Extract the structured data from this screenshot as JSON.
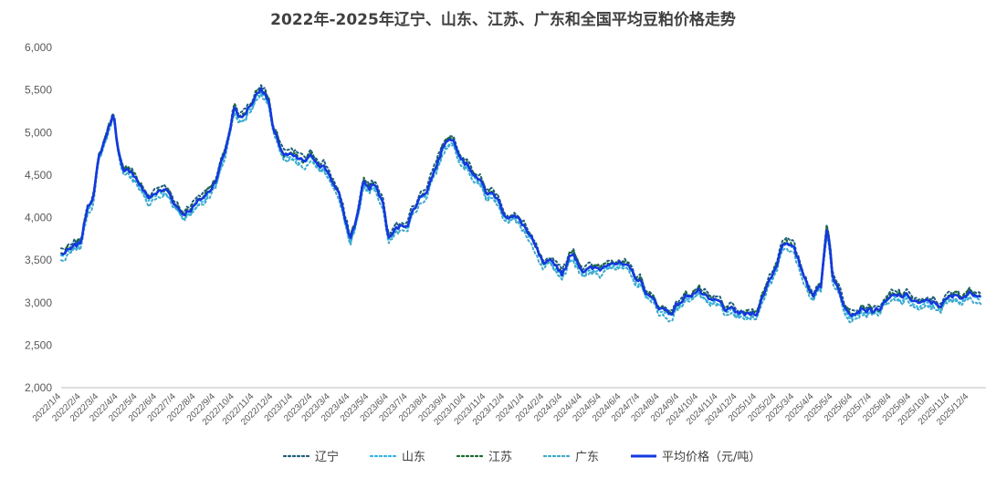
{
  "chart_data": {
    "type": "line",
    "title": "2022年-2025年辽宁、山东、江苏、广东和全国平均豆粕价格走势",
    "xlabel": "",
    "ylabel": "",
    "ylim": [
      2000,
      6000
    ],
    "yticks": [
      "2,000",
      "2,500",
      "3,000",
      "3,500",
      "4,000",
      "4,500",
      "5,000",
      "5,500",
      "6,000"
    ],
    "grid": false,
    "legend_position": "bottom",
    "x_tick_labels": [
      "2022/1/4",
      "2022/2/4",
      "2022/3/4",
      "2022/4/4",
      "2022/5/4",
      "2022/6/4",
      "2022/7/4",
      "2022/8/4",
      "2022/9/4",
      "2022/10/4",
      "2022/11/4",
      "2022/12/4",
      "2023/1/4",
      "2023/2/4",
      "2023/3/4",
      "2023/4/4",
      "2023/5/4",
      "2023/6/4",
      "2023/7/4",
      "2023/8/4",
      "2023/9/4",
      "2023/10/4",
      "2023/11/4",
      "2023/12/4",
      "2024/1/4",
      "2024/2/4",
      "2024/3/4",
      "2024/4/4",
      "2024/5/4",
      "2024/6/4",
      "2024/7/4",
      "2024/8/4",
      "2024/9/4",
      "2024/10/4",
      "2024/11/4",
      "2024/12/4",
      "2025/1/4",
      "2025/2/4",
      "2025/3/4",
      "2025/4/4",
      "2025/5/4",
      "2025/6/4",
      "2025/7/4",
      "2025/8/4",
      "2025/9/4",
      "2025/10/4",
      "2025/11/4",
      "2025/12/4"
    ],
    "months": [
      "2022/1",
      "2022/2",
      "2022/3",
      "2022/4",
      "2022/5",
      "2022/6",
      "2022/7",
      "2022/8",
      "2022/9",
      "2022/10",
      "2022/11",
      "2022/12",
      "2023/1",
      "2023/2",
      "2023/3",
      "2023/4",
      "2023/5",
      "2023/6",
      "2023/7",
      "2023/8",
      "2023/9",
      "2023/10",
      "2023/11",
      "2023/12",
      "2024/1",
      "2024/2",
      "2024/3",
      "2024/4",
      "2024/5",
      "2024/6",
      "2024/7",
      "2024/8",
      "2024/9",
      "2024/10",
      "2024/11",
      "2024/12",
      "2025/1",
      "2025/2",
      "2025/3",
      "2025/4",
      "2025/5",
      "2025/6",
      "2025/7",
      "2025/8",
      "2025/9",
      "2025/10",
      "2025/11",
      "2025/12"
    ],
    "anchor_points": [
      [
        "2022/1/4",
        3570
      ],
      [
        "2022/1/20",
        3610
      ],
      [
        "2022/2/4",
        3700
      ],
      [
        "2022/2/15",
        4150
      ],
      [
        "2022/2/25",
        4300
      ],
      [
        "2022/3/4",
        4680
      ],
      [
        "2022/3/15",
        4950
      ],
      [
        "2022/3/28",
        5230
      ],
      [
        "2022/4/4",
        4800
      ],
      [
        "2022/4/12",
        4500
      ],
      [
        "2022/4/25",
        4550
      ],
      [
        "2022/5/4",
        4450
      ],
      [
        "2022/5/20",
        4230
      ],
      [
        "2022/6/4",
        4300
      ],
      [
        "2022/6/20",
        4320
      ],
      [
        "2022/7/4",
        4150
      ],
      [
        "2022/7/15",
        4050
      ],
      [
        "2022/8/4",
        4150
      ],
      [
        "2022/8/25",
        4300
      ],
      [
        "2022/9/4",
        4450
      ],
      [
        "2022/9/20",
        4800
      ],
      [
        "2022/10/4",
        5300
      ],
      [
        "2022/10/15",
        5150
      ],
      [
        "2022/11/4",
        5400
      ],
      [
        "2022/11/15",
        5550
      ],
      [
        "2022/11/28",
        5350
      ],
      [
        "2022/12/4",
        5000
      ],
      [
        "2022/12/20",
        4750
      ],
      [
        "2023/1/4",
        4700
      ],
      [
        "2023/1/20",
        4650
      ],
      [
        "2023/2/4",
        4700
      ],
      [
        "2023/2/20",
        4620
      ],
      [
        "2023/3/4",
        4500
      ],
      [
        "2023/3/20",
        4200
      ],
      [
        "2023/4/4",
        3750
      ],
      [
        "2023/4/15",
        4000
      ],
      [
        "2023/4/25",
        4450
      ],
      [
        "2023/5/4",
        4300
      ],
      [
        "2023/5/12",
        4400
      ],
      [
        "2023/5/25",
        4200
      ],
      [
        "2023/6/4",
        3750
      ],
      [
        "2023/6/15",
        3850
      ],
      [
        "2023/7/4",
        3950
      ],
      [
        "2023/7/20",
        4200
      ],
      [
        "2023/8/4",
        4350
      ],
      [
        "2023/8/20",
        4650
      ],
      [
        "2023/9/4",
        4950
      ],
      [
        "2023/9/15",
        4900
      ],
      [
        "2023/10/4",
        4650
      ],
      [
        "2023/10/20",
        4500
      ],
      [
        "2023/11/4",
        4300
      ],
      [
        "2023/11/20",
        4250
      ],
      [
        "2023/12/4",
        4050
      ],
      [
        "2023/12/20",
        4000
      ],
      [
        "2024/1/4",
        3900
      ],
      [
        "2024/1/20",
        3650
      ],
      [
        "2024/2/4",
        3420
      ],
      [
        "2024/2/20",
        3450
      ],
      [
        "2024/3/4",
        3350
      ],
      [
        "2024/3/20",
        3600
      ],
      [
        "2024/4/4",
        3400
      ],
      [
        "2024/4/20",
        3380
      ],
      [
        "2024/5/4",
        3400
      ],
      [
        "2024/5/20",
        3520
      ],
      [
        "2024/6/4",
        3450
      ],
      [
        "2024/6/20",
        3350
      ],
      [
        "2024/7/4",
        3250
      ],
      [
        "2024/7/20",
        3050
      ],
      [
        "2024/8/4",
        2950
      ],
      [
        "2024/8/20",
        2880
      ],
      [
        "2024/9/4",
        3000
      ],
      [
        "2024/9/20",
        3100
      ],
      [
        "2024/10/4",
        3150
      ],
      [
        "2024/10/20",
        3000
      ],
      [
        "2024/11/4",
        3000
      ],
      [
        "2024/11/20",
        2900
      ],
      [
        "2024/12/4",
        2880
      ],
      [
        "2024/12/20",
        2850
      ],
      [
        "2025/1/4",
        2900
      ],
      [
        "2025/1/20",
        3200
      ],
      [
        "2025/2/4",
        3450
      ],
      [
        "2025/2/15",
        3750
      ],
      [
        "2025/3/4",
        3600
      ],
      [
        "2025/3/20",
        3300
      ],
      [
        "2025/4/4",
        3100
      ],
      [
        "2025/4/15",
        3200
      ],
      [
        "2025/4/25",
        3950
      ],
      [
        "2025/5/4",
        3300
      ],
      [
        "2025/5/20",
        3000
      ],
      [
        "2025/6/4",
        2900
      ],
      [
        "2025/6/20",
        2950
      ],
      [
        "2025/7/4",
        2900
      ],
      [
        "2025/7/20",
        2950
      ],
      [
        "2025/8/4",
        3050
      ],
      [
        "2025/8/20",
        3080
      ],
      [
        "2025/9/4",
        3050
      ],
      [
        "2025/9/20",
        2980
      ],
      [
        "2025/10/4",
        3000
      ],
      [
        "2025/10/20",
        2980
      ],
      [
        "2025/11/4",
        3050
      ],
      [
        "2025/11/20",
        3080
      ],
      [
        "2025/12/4",
        3100
      ],
      [
        "2025/12/25",
        3130
      ]
    ],
    "series": [
      {
        "name": "辽宁",
        "offset": 40,
        "color": "#1f5f7a",
        "style": "dotted"
      },
      {
        "name": "山东",
        "offset": -30,
        "color": "#33b5e5",
        "style": "dotted"
      },
      {
        "name": "江苏",
        "offset": 10,
        "color": "#1b6b2f",
        "style": "dotted"
      },
      {
        "name": "广东",
        "offset": -60,
        "color": "#3fa9c9",
        "style": "dotted"
      },
      {
        "name": "平均价格（元/吨）",
        "offset": 0,
        "color": "#1438e0",
        "style": "solid"
      }
    ]
  }
}
